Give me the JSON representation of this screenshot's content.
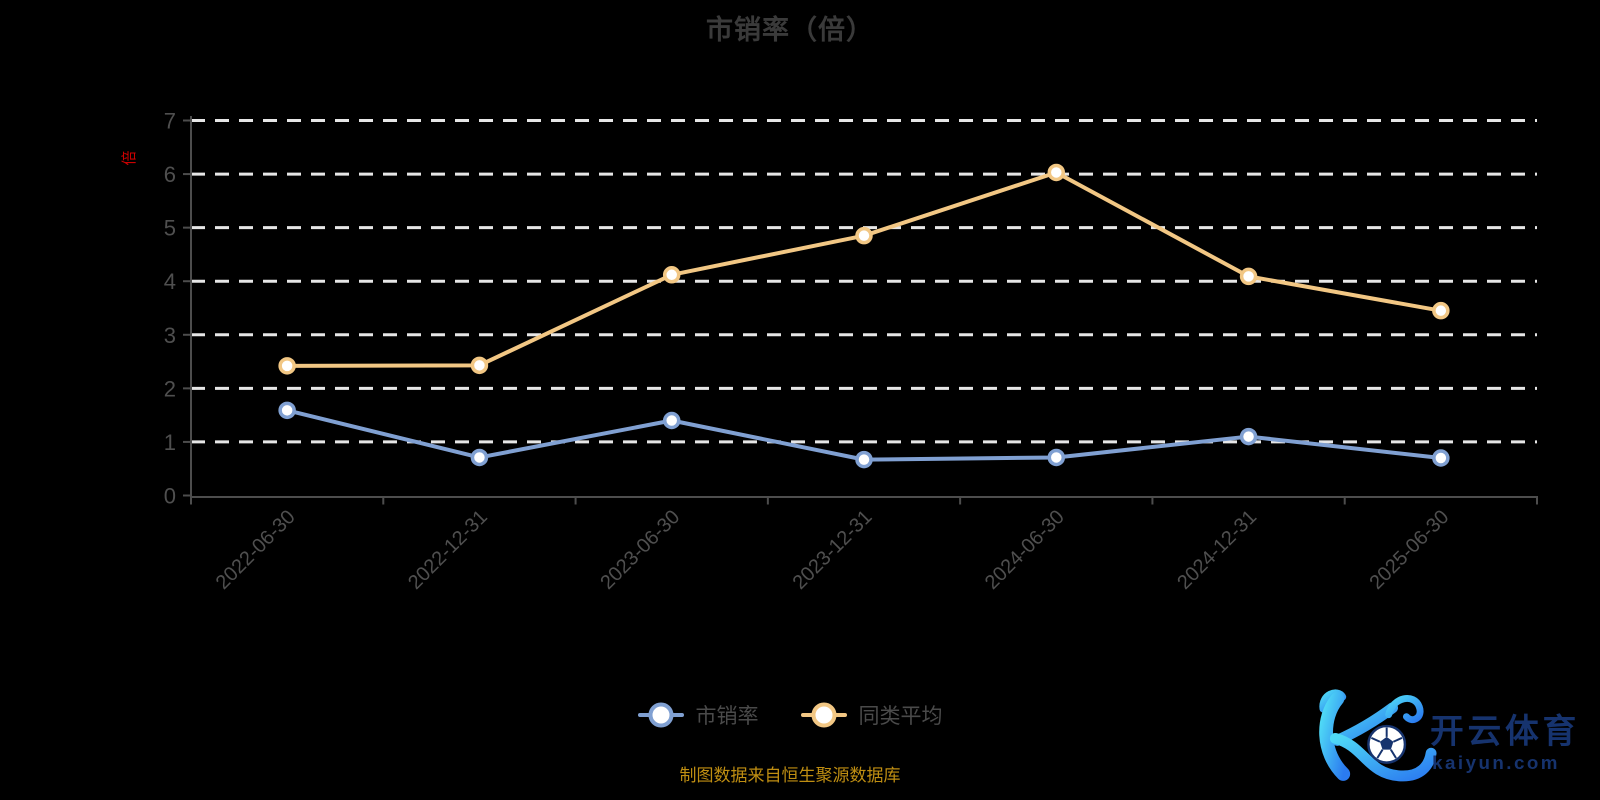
{
  "title": "市销率（倍）",
  "y_axis_name": "倍",
  "footnote": "制图数据来自恒生聚源数据库",
  "watermark": {
    "name_cn": "开云体育",
    "domain": "kaiyun.com"
  },
  "colors": {
    "background": "#000000",
    "title": "#3a3a3a",
    "axis_line": "#4d4d4d",
    "axis_label": "#4f4f4f",
    "gridline": "#e6e6e6",
    "y_name_red": "#cc0000",
    "series_psr_blue": "#80a0d2",
    "series_avg_yellow": "#f2c784",
    "marker_fill": "#ffffff",
    "footnote_gold": "#bf8e12",
    "legend_text": "#4a4a4a",
    "logo_navy": "#16336e",
    "logo_gradient_start": "#4fd9f6",
    "logo_gradient_end": "#2b7bf0"
  },
  "chart_data": {
    "type": "line",
    "title": "市销率（倍）",
    "categories": [
      "2022-06-30",
      "2022-12-31",
      "2023-06-30",
      "2023-12-31",
      "2024-06-30",
      "2024-12-31",
      "2025-06-30"
    ],
    "series": [
      {
        "name": "市销率",
        "color": "#80a0d2",
        "values": [
          1.59,
          0.71,
          1.4,
          0.67,
          0.71,
          1.1,
          0.7
        ]
      },
      {
        "name": "同类平均",
        "color": "#f2c784",
        "values": [
          2.42,
          2.43,
          4.12,
          4.85,
          6.03,
          4.09,
          3.45
        ]
      }
    ],
    "xlabel": "",
    "ylabel": "倍",
    "ylim": [
      0,
      7
    ],
    "y_interval": 1,
    "x_label_rotate": 45,
    "grid": "horizontal-dashed-white",
    "legend_position": "bottom",
    "marker": "circle-white-fill"
  }
}
